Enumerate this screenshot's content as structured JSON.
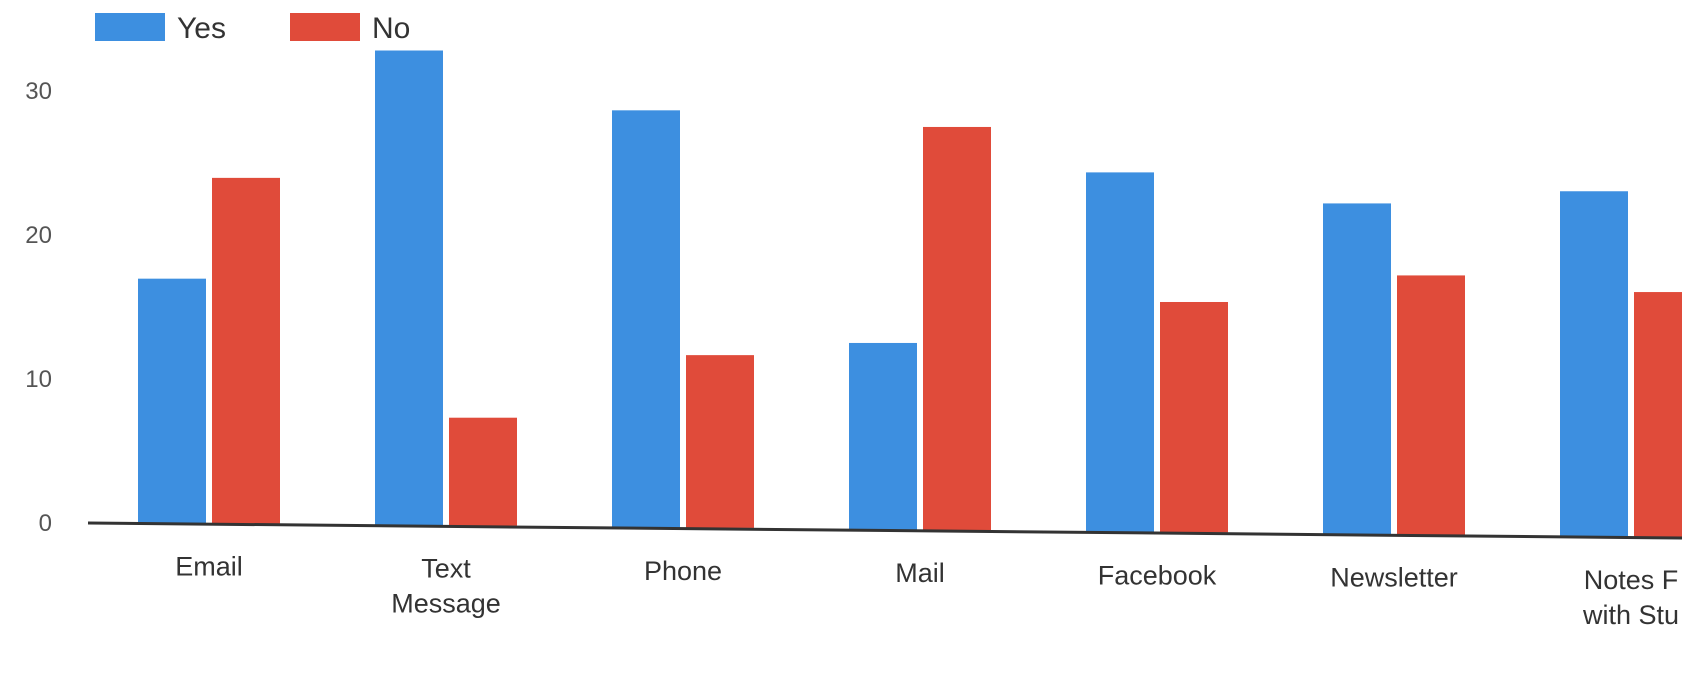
{
  "chart_data": {
    "type": "bar",
    "categories": [
      [
        "Email"
      ],
      [
        "Text",
        "Message"
      ],
      [
        "Phone"
      ],
      [
        "Mail"
      ],
      [
        "Facebook"
      ],
      [
        "Newsletter"
      ],
      [
        "Notes F",
        "with Stu"
      ]
    ],
    "series": [
      {
        "name": "Yes",
        "color": "#3d8fe0",
        "values": [
          17,
          33,
          29,
          13,
          25,
          23,
          24
        ]
      },
      {
        "name": "No",
        "color": "#e04b3a",
        "values": [
          24,
          7.5,
          12,
          28,
          16,
          18,
          17
        ]
      }
    ],
    "yticks": [
      0,
      10,
      20,
      30
    ],
    "ylim": [
      0,
      33
    ],
    "legend_position": "top-left",
    "grid": false,
    "title": "",
    "xlabel": "",
    "ylabel": ""
  }
}
